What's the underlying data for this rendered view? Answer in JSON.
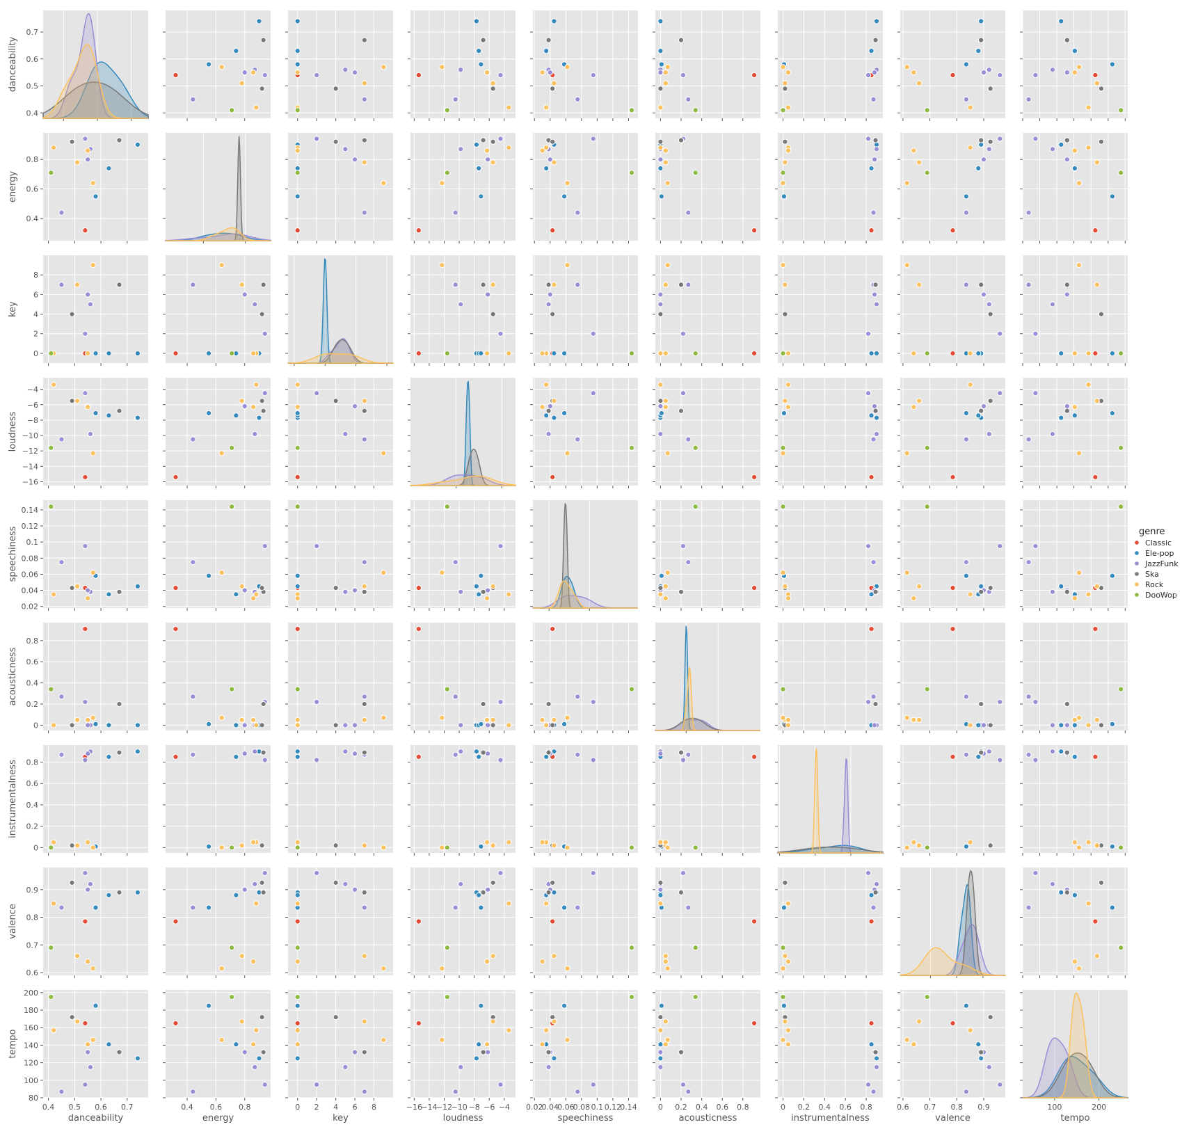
{
  "chart_data": {
    "type": "scatter",
    "variables": [
      "danceability",
      "energy",
      "key",
      "loudness",
      "speechiness",
      "acousticness",
      "instrumentalness",
      "valence",
      "tempo"
    ],
    "legend": {
      "title": "genre",
      "placement": "right"
    },
    "style": {
      "panel_bg": "#e5e5e5",
      "grid": true,
      "grid_color": "#ffffff",
      "marker_edge": "#ffffff"
    },
    "axes": {
      "danceability": {
        "label": "danceability",
        "range": [
          0.38,
          0.78
        ],
        "kde_range": [
          0.28,
          0.9
        ],
        "ticks": [
          0.4,
          0.5,
          0.6,
          0.7
        ],
        "kde_ticks": [
          0.4,
          0.6,
          0.8
        ]
      },
      "energy": {
        "label": "energy",
        "range": [
          0.25,
          0.98
        ],
        "kde_range": [
          0.05,
          1.3
        ],
        "ticks": [
          0.4,
          0.6,
          0.8
        ],
        "kde_ticks": [
          0.5,
          1.0
        ]
      },
      "key": {
        "label": "key",
        "range": [
          -1,
          10
        ],
        "kde_range": [
          -12,
          22
        ],
        "ticks": [
          0,
          2,
          4,
          6,
          8
        ],
        "kde_ticks": [
          -10,
          0,
          10,
          20
        ]
      },
      "loudness": {
        "label": "loudness",
        "range": [
          -16.5,
          -2.5
        ],
        "kde_range": [
          -20,
          3
        ],
        "ticks": [
          -16,
          -14,
          -12,
          -10,
          -8,
          -6,
          -4
        ],
        "kde_ticks": [
          -10,
          0
        ]
      },
      "speechiness": {
        "label": "speechiness",
        "range": [
          0.018,
          0.152
        ],
        "kde_range": [
          -0.04,
          0.22
        ],
        "ticks": [
          0.02,
          0.04,
          0.06,
          0.08,
          0.1,
          0.12,
          0.14
        ],
        "kde_ticks": [
          0.0,
          0.1
        ]
      },
      "acousticness": {
        "label": "acousticness",
        "range": [
          -0.05,
          0.97
        ],
        "kde_range": [
          -0.48,
          1.16
        ],
        "ticks": [
          0.0,
          0.2,
          0.4,
          0.6,
          0.8
        ],
        "kde_ticks": [
          0.0,
          0.5
        ]
      },
      "instrumentalness": {
        "label": "instrumentalness",
        "range": [
          -0.05,
          0.96
        ],
        "kde_range": [
          -1.05,
          1.9
        ],
        "ticks": [
          0.0,
          0.2,
          0.4,
          0.6,
          0.8
        ],
        "kde_ticks": [
          -1,
          0,
          1
        ]
      },
      "valence": {
        "label": "valence",
        "range": [
          0.59,
          0.98
        ],
        "kde_range": [
          0.37,
          1.17
        ],
        "ticks": [
          0.6,
          0.7,
          0.8,
          0.9
        ],
        "kde_ticks": [
          0.6,
          0.8,
          1.0
        ]
      },
      "tempo": {
        "label": "tempo",
        "range": [
          80,
          203
        ],
        "kde_range": [
          28,
          265
        ],
        "ticks": [
          80,
          100,
          120,
          140,
          160,
          180,
          200
        ],
        "kde_ticks": [
          100,
          200
        ]
      }
    },
    "series": [
      {
        "name": "Classic",
        "color": "#E24A33",
        "points": [
          {
            "danceability": 0.54,
            "energy": 0.32,
            "key": 0,
            "loudness": -15.4,
            "speechiness": 0.043,
            "acousticness": 0.91,
            "instrumentalness": 0.85,
            "valence": 0.785,
            "tempo": 165
          }
        ]
      },
      {
        "name": "Ele-pop",
        "color": "#348ABD",
        "points": [
          {
            "danceability": 0.74,
            "energy": 0.9,
            "key": 0,
            "loudness": -7.7,
            "speechiness": 0.045,
            "acousticness": 0.0,
            "instrumentalness": 0.9,
            "valence": 0.89,
            "tempo": 125
          },
          {
            "danceability": 0.63,
            "energy": 0.74,
            "key": 0,
            "loudness": -7.4,
            "speechiness": 0.035,
            "acousticness": 0.0,
            "instrumentalness": 0.85,
            "valence": 0.88,
            "tempo": 141
          },
          {
            "danceability": 0.58,
            "energy": 0.55,
            "key": 0,
            "loudness": -7.1,
            "speechiness": 0.058,
            "acousticness": 0.01,
            "instrumentalness": 0.01,
            "valence": 0.835,
            "tempo": 185
          }
        ]
      },
      {
        "name": "JazzFunk",
        "color": "#988ED5",
        "points": [
          {
            "danceability": 0.45,
            "energy": 0.44,
            "key": 7,
            "loudness": -10.5,
            "speechiness": 0.075,
            "acousticness": 0.27,
            "instrumentalness": 0.87,
            "valence": 0.835,
            "tempo": 87
          },
          {
            "danceability": 0.54,
            "energy": 0.94,
            "key": 2,
            "loudness": -4.5,
            "speechiness": 0.095,
            "acousticness": 0.22,
            "instrumentalness": 0.82,
            "valence": 0.96,
            "tempo": 95
          },
          {
            "danceability": 0.56,
            "energy": 0.87,
            "key": 5,
            "loudness": -9.8,
            "speechiness": 0.038,
            "acousticness": 0.0,
            "instrumentalness": 0.9,
            "valence": 0.92,
            "tempo": 115
          },
          {
            "danceability": 0.55,
            "energy": 0.8,
            "key": 6,
            "loudness": -6.2,
            "speechiness": 0.04,
            "acousticness": 0.0,
            "instrumentalness": 0.88,
            "valence": 0.9,
            "tempo": 132
          }
        ]
      },
      {
        "name": "Ska",
        "color": "#777777",
        "points": [
          {
            "danceability": 0.67,
            "energy": 0.93,
            "key": 7,
            "loudness": -6.8,
            "speechiness": 0.038,
            "acousticness": 0.2,
            "instrumentalness": 0.89,
            "valence": 0.89,
            "tempo": 132
          },
          {
            "danceability": 0.49,
            "energy": 0.92,
            "key": 4,
            "loudness": -5.5,
            "speechiness": 0.043,
            "acousticness": 0.0,
            "instrumentalness": 0.02,
            "valence": 0.925,
            "tempo": 172
          }
        ]
      },
      {
        "name": "Rock",
        "color": "#FBC15E",
        "points": [
          {
            "danceability": 0.42,
            "energy": 0.88,
            "key": 0,
            "loudness": -3.4,
            "speechiness": 0.035,
            "acousticness": 0.0,
            "instrumentalness": 0.05,
            "valence": 0.85,
            "tempo": 157
          },
          {
            "danceability": 0.51,
            "energy": 0.78,
            "key": 7,
            "loudness": -5.5,
            "speechiness": 0.045,
            "acousticness": 0.05,
            "instrumentalness": 0.02,
            "valence": 0.66,
            "tempo": 167
          },
          {
            "danceability": 0.57,
            "energy": 0.64,
            "key": 9,
            "loudness": -12.3,
            "speechiness": 0.062,
            "acousticness": 0.07,
            "instrumentalness": 0.0,
            "valence": 0.615,
            "tempo": 146
          },
          {
            "danceability": 0.55,
            "energy": 0.86,
            "key": 0,
            "loudness": -6.3,
            "speechiness": 0.03,
            "acousticness": 0.05,
            "instrumentalness": 0.05,
            "valence": 0.64,
            "tempo": 141
          }
        ]
      },
      {
        "name": "DooWop",
        "color": "#8EBA42",
        "points": [
          {
            "danceability": 0.41,
            "energy": 0.71,
            "key": 0,
            "loudness": -11.6,
            "speechiness": 0.144,
            "acousticness": 0.34,
            "instrumentalness": 0.0,
            "valence": 0.69,
            "tempo": 195
          }
        ]
      }
    ]
  }
}
